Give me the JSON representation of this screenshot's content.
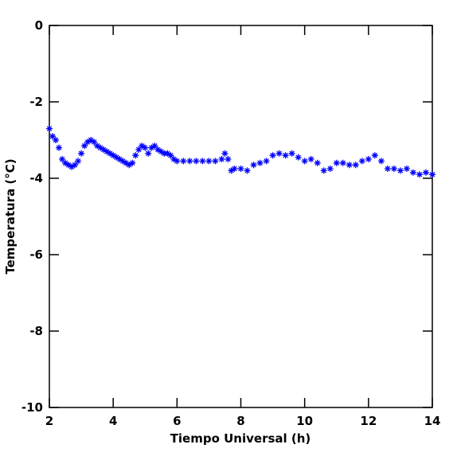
{
  "chart_data": {
    "type": "scatter",
    "x_label": "Tiempo Universal (h)",
    "y_label": "Temperatura (°C)",
    "color": "#0000ff",
    "marker": "asterisk",
    "xlim": [
      2,
      14
    ],
    "ylim": [
      -10,
      0
    ],
    "xticks": [
      2,
      4,
      6,
      8,
      10,
      12,
      14
    ],
    "yticks": [
      0,
      -2,
      -4,
      -6,
      -8,
      -10
    ],
    "x": [
      2.0,
      2.1,
      2.2,
      2.3,
      2.4,
      2.5,
      2.6,
      2.7,
      2.8,
      2.9,
      3.0,
      3.1,
      3.2,
      3.3,
      3.4,
      3.5,
      3.6,
      3.7,
      3.8,
      3.9,
      4.0,
      4.1,
      4.2,
      4.3,
      4.4,
      4.5,
      4.6,
      4.7,
      4.8,
      4.9,
      5.0,
      5.1,
      5.2,
      5.3,
      5.4,
      5.5,
      5.6,
      5.7,
      5.8,
      5.9,
      6.0,
      6.2,
      6.4,
      6.6,
      6.8,
      7.0,
      7.2,
      7.4,
      7.5,
      7.6,
      7.7,
      7.8,
      8.0,
      8.2,
      8.4,
      8.6,
      8.8,
      9.0,
      9.2,
      9.4,
      9.6,
      9.8,
      10.0,
      10.2,
      10.4,
      10.6,
      10.8,
      11.0,
      11.2,
      11.4,
      11.6,
      11.8,
      12.0,
      12.2,
      12.4,
      12.6,
      12.8,
      13.0,
      13.2,
      13.4,
      13.6,
      13.8,
      14.0
    ],
    "values": [
      -2.7,
      -2.9,
      -3.0,
      -3.2,
      -3.5,
      -3.6,
      -3.65,
      -3.7,
      -3.65,
      -3.55,
      -3.35,
      -3.15,
      -3.05,
      -3.0,
      -3.05,
      -3.15,
      -3.2,
      -3.25,
      -3.3,
      -3.35,
      -3.4,
      -3.45,
      -3.5,
      -3.55,
      -3.6,
      -3.65,
      -3.6,
      -3.4,
      -3.25,
      -3.15,
      -3.2,
      -3.35,
      -3.2,
      -3.15,
      -3.25,
      -3.3,
      -3.35,
      -3.35,
      -3.4,
      -3.5,
      -3.55,
      -3.55,
      -3.55,
      -3.55,
      -3.55,
      -3.55,
      -3.55,
      -3.5,
      -3.35,
      -3.5,
      -3.8,
      -3.75,
      -3.75,
      -3.8,
      -3.65,
      -3.6,
      -3.55,
      -3.4,
      -3.35,
      -3.4,
      -3.35,
      -3.45,
      -3.55,
      -3.5,
      -3.6,
      -3.8,
      -3.75,
      -3.6,
      -3.6,
      -3.65,
      -3.65,
      -3.55,
      -3.5,
      -3.4,
      -3.55,
      -3.75,
      -3.75,
      -3.8,
      -3.75,
      -3.85,
      -3.9,
      -3.85,
      -3.9
    ]
  }
}
